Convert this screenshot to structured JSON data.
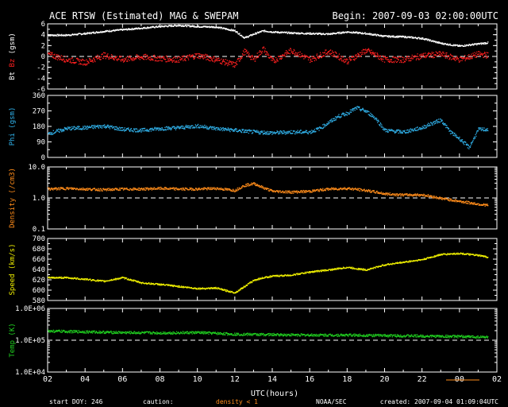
{
  "header": {
    "title": "ACE RTSW (Estimated) MAG & SWEPAM",
    "begin": "Begin: 2007-09-03 02:00:00UTC"
  },
  "footer": {
    "start_doy": "start DOY: 246",
    "caution_label": "caution:",
    "caution_text": "density < 1",
    "agency": "NOAA/SEC",
    "created": "created: 2007-09-04 01:09:04UTC"
  },
  "colors": {
    "background": "#000000",
    "frame": "#ffffff",
    "bt": "#ffffff",
    "bz": "#ff2020",
    "phi": "#30b0e8",
    "density": "#ff8c1a",
    "speed": "#f0f000",
    "temp": "#20d020",
    "dashed": "#ffffff"
  },
  "chart_data": [
    {
      "type": "scatter",
      "panel": "mag",
      "ylabel_parts": [
        "Bt",
        "Bz",
        "(gsm)"
      ],
      "ylim": [
        -6,
        6
      ],
      "yticks": [
        "6",
        "4",
        "2",
        "0",
        "-2",
        "-4",
        "-6"
      ],
      "reference_line": 0,
      "series": [
        {
          "name": "Bt",
          "x": [
            2,
            3,
            4,
            5,
            6,
            7,
            8,
            9,
            10,
            11,
            12,
            12.5,
            13,
            13.5,
            14,
            15,
            16,
            17,
            18,
            19,
            20,
            21,
            22,
            23,
            24,
            25,
            25.5
          ],
          "y": [
            4,
            4,
            4.3,
            4.7,
            5,
            5.3,
            5.6,
            5.8,
            5.6,
            5.5,
            4.8,
            3.5,
            4.2,
            4.8,
            4.6,
            4.4,
            4.3,
            4.2,
            4.6,
            4.3,
            3.8,
            3.7,
            3.4,
            2.5,
            2.0,
            2.4,
            2.6
          ]
        },
        {
          "name": "Bz",
          "x": [
            2,
            3,
            4,
            5,
            6,
            7,
            8,
            9,
            10,
            11,
            12,
            12.5,
            13,
            13.5,
            14,
            15,
            16,
            17,
            18,
            19,
            20,
            21,
            22,
            23,
            24,
            25,
            25.5
          ],
          "y": [
            0.5,
            -0.5,
            -1,
            0.3,
            -0.5,
            0,
            -0.3,
            -0.5,
            0.3,
            -0.5,
            -1.5,
            1,
            -0.5,
            1.5,
            -0.8,
            1.2,
            -0.5,
            1,
            -0.8,
            1.2,
            -0.5,
            -0.5,
            0.2,
            0.5,
            -0.5,
            0.5,
            0.3
          ]
        }
      ]
    },
    {
      "type": "scatter",
      "panel": "phi",
      "ylabel": "Phi (gsm)",
      "ylim": [
        0,
        360
      ],
      "yticks": [
        "360",
        "270",
        "180",
        "90",
        "0"
      ],
      "series": [
        {
          "name": "Phi",
          "x": [
            2,
            3,
            4,
            5,
            6,
            7,
            8,
            9,
            10,
            11,
            12,
            13,
            14,
            15,
            16,
            16.5,
            17,
            17.5,
            18,
            18.5,
            19,
            19.5,
            20,
            21,
            22,
            22.5,
            23,
            23.5,
            24,
            24.5,
            25,
            25.5
          ],
          "y": [
            140,
            170,
            175,
            185,
            165,
            160,
            170,
            175,
            185,
            170,
            160,
            150,
            145,
            150,
            150,
            170,
            205,
            240,
            260,
            290,
            270,
            230,
            160,
            150,
            175,
            200,
            220,
            150,
            110,
            60,
            165,
            165
          ]
        }
      ]
    },
    {
      "type": "scatter",
      "panel": "density",
      "ylabel": "Density (/cm3)",
      "yscale": "log",
      "ylim": [
        0.1,
        10
      ],
      "yticks": [
        "10.0",
        "1.0",
        "0.1"
      ],
      "reference_line": 1.0,
      "series": [
        {
          "name": "Density",
          "x": [
            2,
            3,
            4,
            5,
            6,
            7,
            8,
            9,
            10,
            11,
            12,
            12.5,
            13,
            13.5,
            14,
            15,
            16,
            17,
            18,
            19,
            20,
            21,
            22,
            23,
            24,
            25,
            25.5
          ],
          "y": [
            2.0,
            2.1,
            2.0,
            1.9,
            2.0,
            2.0,
            2.1,
            2.0,
            2.0,
            2.1,
            1.8,
            2.6,
            3.0,
            2.2,
            1.7,
            1.6,
            1.7,
            2.0,
            2.1,
            1.8,
            1.4,
            1.3,
            1.3,
            1.0,
            0.8,
            0.65,
            0.6
          ]
        }
      ]
    },
    {
      "type": "scatter",
      "panel": "speed",
      "ylabel": "Speed (km/s)",
      "ylim": [
        580,
        700
      ],
      "yticks": [
        "700",
        "680",
        "660",
        "640",
        "620",
        "600",
        "580"
      ],
      "series": [
        {
          "name": "Speed",
          "x": [
            2,
            3,
            4,
            5,
            6,
            7,
            8,
            9,
            10,
            11,
            11.5,
            12,
            12.5,
            13,
            13.5,
            14,
            15,
            16,
            17,
            18,
            19,
            20,
            21,
            22,
            23,
            24,
            25,
            25.5
          ],
          "y": [
            625,
            625,
            622,
            618,
            625,
            615,
            612,
            608,
            604,
            605,
            600,
            596,
            608,
            620,
            625,
            628,
            630,
            636,
            640,
            645,
            640,
            650,
            655,
            660,
            670,
            672,
            668,
            665
          ]
        }
      ]
    },
    {
      "type": "scatter",
      "panel": "temp",
      "ylabel": "Temp (K)",
      "yscale": "log",
      "ylim": [
        10000,
        1000000
      ],
      "yticks": [
        "1.0E+06",
        "1.0E+05",
        "1.0E+04"
      ],
      "reference_line": 100000,
      "xlabel": "UTC(hours)",
      "xlim": [
        2,
        26
      ],
      "xticks": [
        "02",
        "04",
        "06",
        "08",
        "10",
        "12",
        "14",
        "16",
        "18",
        "20",
        "22",
        "00",
        "02"
      ],
      "series": [
        {
          "name": "Temp",
          "x": [
            2,
            4,
            6,
            8,
            10,
            12,
            14,
            16,
            18,
            20,
            22,
            24,
            25.5
          ],
          "y": [
            200000,
            190000,
            180000,
            175000,
            180000,
            160000,
            155000,
            150000,
            150000,
            145000,
            140000,
            135000,
            130000
          ]
        }
      ]
    }
  ]
}
